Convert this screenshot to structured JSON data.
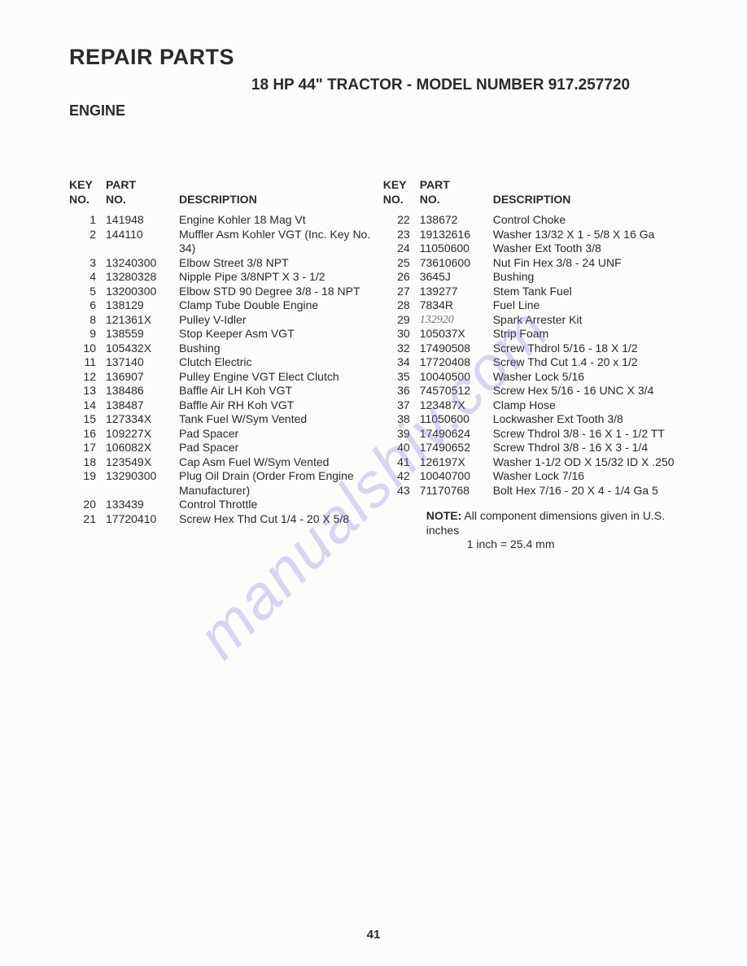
{
  "heading_main": "REPAIR PARTS",
  "heading_sub": "18 HP 44\" TRACTOR - MODEL NUMBER 917.257720",
  "heading_section": "ENGINE",
  "watermark": "manualshiv.com",
  "page_number": "41",
  "table_headers": {
    "key_line1": "KEY",
    "key_line2": "NO.",
    "part_line1": "PART",
    "part_line2": "NO.",
    "desc": "DESCRIPTION"
  },
  "left_rows": [
    {
      "key": "1",
      "part": "141948",
      "desc": "Engine Kohler 18 Mag Vt"
    },
    {
      "key": "2",
      "part": "144110",
      "desc": "Muffler Asm Kohler VGT  (Inc. Key No. 34)"
    },
    {
      "key": "3",
      "part": "13240300",
      "desc": "Elbow Street 3/8 NPT"
    },
    {
      "key": "4",
      "part": "13280328",
      "desc": "Nipple Pipe 3/8NPT X 3 - 1/2"
    },
    {
      "key": "5",
      "part": "13200300",
      "desc": "Elbow STD 90 Degree 3/8 - 18 NPT"
    },
    {
      "key": "6",
      "part": "138129",
      "desc": "Clamp Tube Double Engine"
    },
    {
      "key": "8",
      "part": "121361X",
      "desc": "Pulley V-Idler"
    },
    {
      "key": "9",
      "part": "138559",
      "desc": "Stop Keeper Asm VGT"
    },
    {
      "key": "10",
      "part": "105432X",
      "desc": "Bushing"
    },
    {
      "key": "11",
      "part": "137140",
      "desc": "Clutch Electric"
    },
    {
      "key": "12",
      "part": "136907",
      "desc": "Pulley Engine VGT Elect Clutch"
    },
    {
      "key": "13",
      "part": "138486",
      "desc": "Baffle Air LH Koh VGT"
    },
    {
      "key": "14",
      "part": "138487",
      "desc": "Baffle Air RH Koh VGT"
    },
    {
      "key": "15",
      "part": "127334X",
      "desc": "Tank Fuel W/Sym Vented"
    },
    {
      "key": "16",
      "part": "109227X",
      "desc": "Pad Spacer"
    },
    {
      "key": "17",
      "part": "106082X",
      "desc": "Pad Spacer"
    },
    {
      "key": "18",
      "part": "123549X",
      "desc": "Cap Asm Fuel W/Sym Vented"
    },
    {
      "key": "19",
      "part": "13290300",
      "desc": "Plug Oil Drain (Order From Engine Manufacturer)"
    },
    {
      "key": "20",
      "part": "133439",
      "desc": "Control Throttle"
    },
    {
      "key": "21",
      "part": "17720410",
      "desc": "Screw Hex Thd Cut 1/4 - 20 X 5/8"
    }
  ],
  "right_rows": [
    {
      "key": "22",
      "part": "138672",
      "desc": "Control Choke"
    },
    {
      "key": "23",
      "part": "19132616",
      "desc": "Washer 13/32 X 1 - 5/8 X 16 Ga"
    },
    {
      "key": "24",
      "part": "11050600",
      "desc": "Washer Ext Tooth 3/8"
    },
    {
      "key": "25",
      "part": "73610600",
      "desc": "Nut Fin Hex 3/8 - 24 UNF"
    },
    {
      "key": "26",
      "part": "3645J",
      "desc": "Bushing"
    },
    {
      "key": "27",
      "part": "139277",
      "desc": "Stem Tank Fuel"
    },
    {
      "key": "28",
      "part": "7834R",
      "desc": "Fuel Line"
    },
    {
      "key": "29",
      "part": "132920",
      "desc": "Spark Arrester Kit",
      "hand": true
    },
    {
      "key": "30",
      "part": "105037X",
      "desc": "Strip Foam"
    },
    {
      "key": "32",
      "part": "17490508",
      "desc": "Screw Thdrol 5/16 - 18 X 1/2"
    },
    {
      "key": "34",
      "part": "17720408",
      "desc": "Screw Thd Cut 1.4 - 20 x 1/2"
    },
    {
      "key": "35",
      "part": "10040500",
      "desc": "Washer Lock 5/16"
    },
    {
      "key": "36",
      "part": "74570512",
      "desc": "Screw Hex 5/16 - 16 UNC X 3/4"
    },
    {
      "key": "37",
      "part": "123487X",
      "desc": "Clamp Hose"
    },
    {
      "key": "38",
      "part": "11050600",
      "desc": "Lockwasher Ext Tooth 3/8"
    },
    {
      "key": "39",
      "part": "17490624",
      "desc": "Screw Thdrol 3/8 - 16 X 1 - 1/2 TT"
    },
    {
      "key": "40",
      "part": "17490652",
      "desc": "Screw Thdrol 3/8 - 16 X 3 - 1/4"
    },
    {
      "key": "41",
      "part": "126197X",
      "desc": "Washer 1-1/2 OD X 15/32 ID X .250"
    },
    {
      "key": "42",
      "part": "10040700",
      "desc": "Washer Lock 7/16"
    },
    {
      "key": "43",
      "part": "71170768",
      "desc": "Bolt Hex 7/16 - 20 X 4 - 1/4 Ga 5"
    }
  ],
  "note_label": "NOTE:",
  "note_line1": "All component dimensions given in U.S. inches",
  "note_line2": "1 inch = 25.4 mm"
}
